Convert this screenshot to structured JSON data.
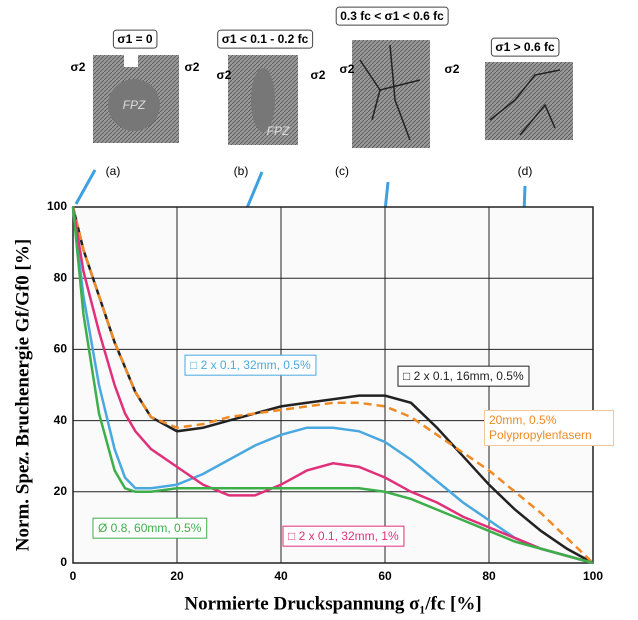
{
  "chart_data": {
    "type": "line",
    "ylabel": "Norm. Spez. Bruchenergie Gf/Gf0 [%]",
    "xlabel": "Normierte Druckspannung σ₁/fc [%]",
    "x": [
      0,
      2,
      5,
      8,
      10,
      12,
      15,
      20,
      25,
      30,
      35,
      40,
      45,
      50,
      55,
      60,
      65,
      70,
      75,
      80,
      85,
      90,
      95,
      100
    ],
    "series": [
      {
        "name": "□ 2 x 0.1, 16mm, 0.5%",
        "color": "#222222",
        "dash": false,
        "values": [
          100,
          88,
          75,
          62,
          55,
          48,
          41,
          37,
          38,
          40,
          42,
          44,
          45,
          46,
          47,
          47,
          45,
          38,
          30,
          22,
          15,
          9,
          4,
          0
        ]
      },
      {
        "name": "20mm, 0.5% Polypropylenfasern",
        "color": "#f08a24",
        "dash": true,
        "values": [
          100,
          88,
          75,
          62,
          55,
          48,
          41,
          38,
          39,
          41,
          42,
          43,
          44,
          45,
          45,
          44,
          41,
          36,
          31,
          26,
          20,
          14,
          7,
          0
        ]
      },
      {
        "name": "□ 2 x 0.1, 32mm, 0.5%",
        "color": "#4aa8e0",
        "dash": false,
        "values": [
          100,
          75,
          50,
          32,
          24,
          21,
          21,
          22,
          25,
          29,
          33,
          36,
          38,
          38,
          37,
          34,
          29,
          23,
          17,
          12,
          7,
          4,
          2,
          0
        ]
      },
      {
        "name": "□ 2 x 0.1, 32mm, 1%",
        "color": "#e0307a",
        "dash": false,
        "values": [
          100,
          82,
          65,
          50,
          42,
          37,
          32,
          27,
          22,
          19,
          19,
          22,
          26,
          28,
          27,
          24,
          20,
          17,
          13,
          10,
          7,
          4,
          2,
          0
        ]
      },
      {
        "name": "Ø 0.8, 60mm, 0.5%",
        "color": "#3cae4a",
        "dash": false,
        "values": [
          100,
          70,
          42,
          26,
          21,
          20,
          20,
          21,
          21,
          21,
          21,
          21,
          21,
          21,
          21,
          20,
          18,
          15,
          12,
          9,
          6,
          4,
          2,
          0
        ]
      }
    ],
    "xlim": [
      0,
      100
    ],
    "ylim": [
      0,
      100
    ],
    "xticks": [
      0,
      20,
      40,
      60,
      80,
      100
    ],
    "yticks": [
      0,
      20,
      40,
      60,
      80,
      100
    ],
    "grid": true,
    "panels": [
      {
        "condition": "σ1 = 0",
        "letter": "(a)"
      },
      {
        "condition": "σ1 < 0.1 - 0.2 fc",
        "letter": "(b)"
      },
      {
        "condition": "0.3 fc < σ1 < 0.6 fc",
        "letter": "(c)"
      },
      {
        "condition": "σ1 > 0.6 fc",
        "letter": "(d)"
      }
    ],
    "stress_label": "σ2",
    "fpz_label": "FPZ"
  }
}
